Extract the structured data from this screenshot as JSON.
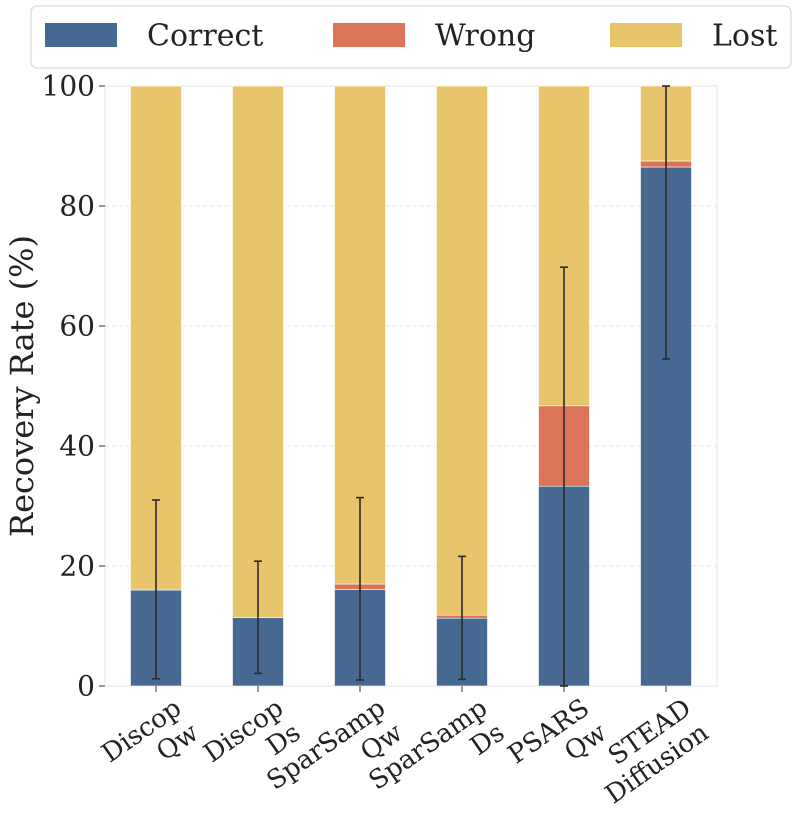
{
  "chart_data": {
    "type": "bar",
    "stacked": true,
    "categories": [
      [
        "Discop",
        "Qw"
      ],
      [
        "Discop",
        "Ds"
      ],
      [
        "SparSamp",
        "Qw"
      ],
      [
        "SparSamp",
        "Ds"
      ],
      [
        "PSARS",
        "Qw"
      ],
      [
        "STEAD",
        "Diffusion"
      ]
    ],
    "series": [
      {
        "name": "Correct",
        "color": "#456990",
        "values": [
          16.0,
          11.4,
          16.1,
          11.3,
          33.3,
          86.5
        ]
      },
      {
        "name": "Wrong",
        "color": "#DB7459",
        "values": [
          0.0,
          0.0,
          0.9,
          0.5,
          13.4,
          1.0
        ]
      },
      {
        "name": "Lost",
        "color": "#E8C46A",
        "values": [
          84.0,
          88.6,
          83.0,
          88.2,
          53.3,
          12.5
        ]
      }
    ],
    "error_bars": [
      {
        "low": 1.2,
        "high": 31.0
      },
      {
        "low": 2.1,
        "high": 20.8
      },
      {
        "low": 1.0,
        "high": 31.4
      },
      {
        "low": 1.1,
        "high": 21.6
      },
      {
        "low": 0.0,
        "high": 69.8
      },
      {
        "low": 54.5,
        "high": 100.0
      }
    ],
    "ylabel": "Recovery Rate (%)",
    "xlabel": "",
    "ylim": [
      0,
      100
    ],
    "yticks": [
      0,
      20,
      40,
      60,
      80,
      100
    ],
    "grid": "horizontal",
    "legend_position": "top"
  }
}
